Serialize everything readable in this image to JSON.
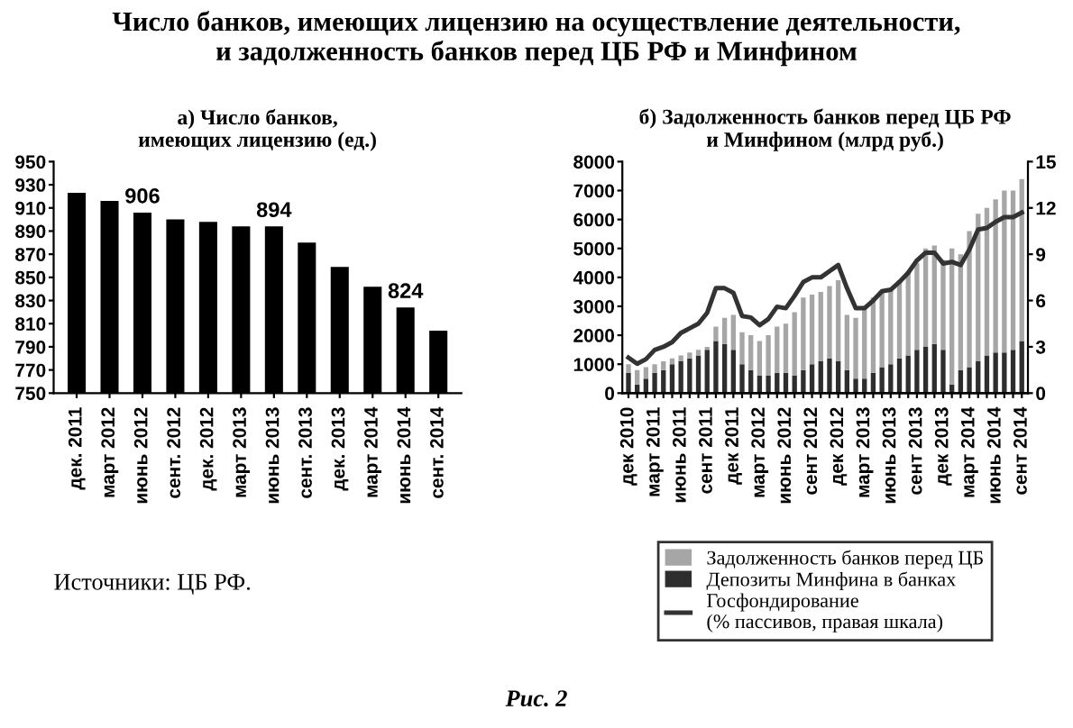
{
  "chart_data": [
    {
      "type": "bar",
      "title": "Число банков, имеющих лицензию на осуществление деятельности,\nи задолженность банков перед ЦБ РФ и Минфином",
      "subtitle": "а) Число банков,\nимеющих лицензию (ед.)",
      "categories": [
        "дек. 2011",
        "март 2012",
        "июнь 2012",
        "сент. 2012",
        "дек. 2012",
        "март 2013",
        "июнь 2013",
        "сент. 2013",
        "дек. 2013",
        "март 2014",
        "июнь 2014",
        "сент. 2014"
      ],
      "values": [
        923,
        916,
        906,
        900,
        898,
        894,
        894,
        880,
        859,
        842,
        824,
        804
      ],
      "value_labels": [
        null,
        null,
        "906",
        null,
        null,
        null,
        "894",
        null,
        null,
        null,
        "824",
        null
      ],
      "color": "#000000",
      "ylim": [
        750,
        950
      ],
      "yticks": [
        750,
        770,
        790,
        810,
        830,
        850,
        870,
        890,
        910,
        930,
        950
      ],
      "grid": false,
      "legend": false,
      "annotations": [
        "Источники: ЦБ РФ.",
        "Рис. 2"
      ]
    },
    {
      "type": "bar",
      "stacked": true,
      "title": "б) Задолженность банков перед ЦБ РФ\nи Минфином (млрд руб.)",
      "categories": [
        "дек 2010",
        null,
        null,
        "март 2011",
        null,
        null,
        "июнь 2011",
        null,
        null,
        "сент 2011",
        null,
        null,
        "дек 2011",
        null,
        null,
        "март 2012",
        null,
        null,
        "июнь 2012",
        null,
        null,
        "сент 2012",
        null,
        null,
        "дек 2012",
        null,
        null,
        "март 2013",
        null,
        null,
        "июнь 2013",
        null,
        null,
        "сент 2013",
        null,
        null,
        "дек 2013",
        null,
        null,
        "март 2014",
        null,
        null,
        "июнь 2014",
        null,
        null,
        "сент 2014"
      ],
      "series": [
        {
          "name": "Депозиты Минфина в банках",
          "color": "#2e2e2e",
          "values": [
            700,
            300,
            500,
            700,
            800,
            1000,
            1100,
            1200,
            1300,
            1500,
            1800,
            1700,
            1500,
            1000,
            800,
            600,
            600,
            700,
            700,
            600,
            800,
            1000,
            1100,
            1200,
            1100,
            800,
            500,
            500,
            700,
            900,
            1000,
            1200,
            1300,
            1500,
            1600,
            1700,
            1500,
            300,
            800,
            900,
            1100,
            1300,
            1400,
            1400,
            1500,
            1800
          ]
        },
        {
          "name": "Задолженность банков перед ЦБ",
          "color": "#a6a6a6",
          "values": [
            300,
            500,
            400,
            300,
            300,
            200,
            200,
            200,
            200,
            100,
            500,
            900,
            1200,
            1100,
            1200,
            1200,
            1400,
            1600,
            1700,
            2200,
            2500,
            2400,
            2400,
            2500,
            2800,
            1900,
            2100,
            2400,
            2600,
            2600,
            2600,
            2700,
            2900,
            3000,
            3400,
            3400,
            3100,
            4700,
            4000,
            4700,
            5100,
            5100,
            5300,
            5600,
            5500,
            5600
          ]
        },
        {
          "name": "Госфондирование\n(% пассивов, правая шкала)",
          "type": "line",
          "axis": "y2",
          "color": "#333333",
          "values": [
            2.3,
            1.9,
            2.2,
            2.8,
            3.0,
            3.3,
            3.9,
            4.2,
            4.5,
            5.2,
            6.8,
            6.8,
            6.5,
            5.0,
            4.9,
            4.4,
            4.8,
            5.6,
            5.5,
            6.3,
            7.2,
            7.5,
            7.5,
            7.9,
            8.3,
            6.8,
            5.5,
            5.5,
            6.0,
            6.6,
            6.7,
            7.2,
            7.8,
            8.6,
            9.1,
            9.1,
            8.4,
            8.5,
            8.3,
            9.3,
            10.6,
            10.7,
            11.1,
            11.4,
            11.4,
            11.7
          ]
        }
      ],
      "ylim": [
        0,
        8000
      ],
      "yticks": [
        0,
        1000,
        2000,
        3000,
        4000,
        5000,
        6000,
        7000,
        8000
      ],
      "y2lim": [
        0,
        15
      ],
      "y2ticks": [
        0,
        3,
        6,
        9,
        12,
        15
      ],
      "grid": false,
      "legend": "bottom"
    }
  ]
}
